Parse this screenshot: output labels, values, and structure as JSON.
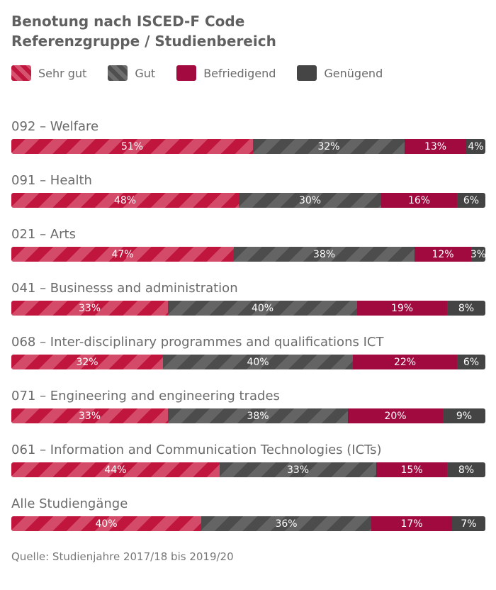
{
  "chart_data": {
    "type": "bar",
    "orientation": "horizontal-stacked-100",
    "title": "Benotung nach ISCED-F Code\nReferenzgruppe / Studienbereich",
    "legend_position": "top-left",
    "grid": false,
    "xlim": [
      0,
      100
    ],
    "series": [
      {
        "name": "Sehr gut",
        "color": "#c0163e"
      },
      {
        "name": "Gut",
        "color": "#4f4f4f"
      },
      {
        "name": "Befriedigend",
        "color": "#a30a3f"
      },
      {
        "name": "Genügend",
        "color": "#454545"
      }
    ],
    "categories": [
      "092 – Welfare",
      "091 – Health",
      "021 – Arts",
      "041 – Businesss and administration",
      "068 – Inter-disciplinary programmes and qualifications ICT",
      "071 – Engineering and engineering trades",
      "061 – Information and Communication Technologies (ICTs)",
      "Alle Studiengänge"
    ],
    "values": [
      [
        51,
        32,
        13,
        4
      ],
      [
        48,
        30,
        16,
        6
      ],
      [
        47,
        38,
        12,
        3
      ],
      [
        33,
        40,
        19,
        8
      ],
      [
        32,
        40,
        22,
        6
      ],
      [
        33,
        38,
        20,
        9
      ],
      [
        44,
        33,
        15,
        8
      ],
      [
        40,
        36,
        17,
        7
      ]
    ],
    "labels": [
      [
        "51%",
        "32%",
        "13%",
        "4%"
      ],
      [
        "48%",
        "30%",
        "16%",
        "6%"
      ],
      [
        "47%",
        "38%",
        "12%",
        "3%"
      ],
      [
        "33%",
        "40%",
        "19%",
        "8%"
      ],
      [
        "32%",
        "40%",
        "22%",
        "6%"
      ],
      [
        "33%",
        "38%",
        "20%",
        "9%"
      ],
      [
        "44%",
        "33%",
        "15%",
        "8%"
      ],
      [
        "40%",
        "36%",
        "17%",
        "7%"
      ]
    ],
    "source": "Quelle: Studienjahre 2017/18 bis 2019/20"
  }
}
